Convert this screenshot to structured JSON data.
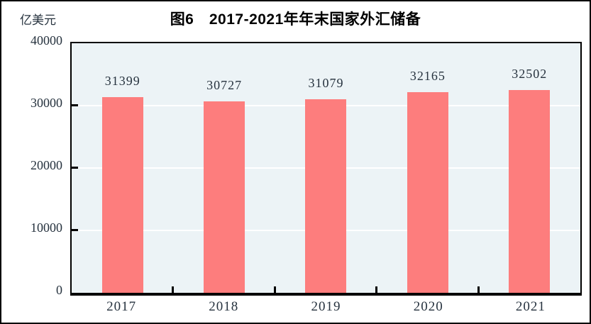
{
  "figure": {
    "title": "图6　2017-2021年年末国家外汇储备",
    "unit_label": "亿美元"
  },
  "chart_data": {
    "type": "bar",
    "title": "图6　2017-2021年年末国家外汇储备",
    "categories": [
      "2017",
      "2018",
      "2019",
      "2020",
      "2021"
    ],
    "values": [
      31399,
      30727,
      31079,
      32165,
      32502
    ],
    "xlabel": "",
    "ylabel": "亿美元",
    "ylim": [
      0,
      40000
    ],
    "yticks": [
      0,
      10000,
      20000,
      30000,
      40000
    ],
    "grid": true,
    "legend": "none",
    "colors": {
      "bar": "#fd7d7d",
      "plot_background": "#ecf3f6",
      "gridline": "#ffffff",
      "axis": "#000000",
      "text": "#26323e"
    }
  }
}
